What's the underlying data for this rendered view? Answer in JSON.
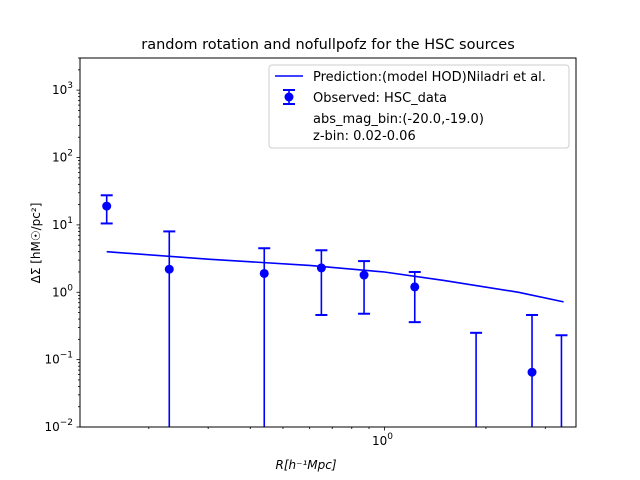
{
  "chart_data": {
    "type": "scatter",
    "title": "random rotation and nofullpofz for the HSC sources",
    "xlabel": "R[h⁻¹Mpc]",
    "ylabel": "ΔΣ [hM☉/pc²]",
    "xscale": "log",
    "yscale": "log",
    "xlim": [
      0.125,
      3.7
    ],
    "ylim": [
      0.01,
      3000
    ],
    "x_tick_labels": [
      {
        "value": 1.0,
        "label": "10⁰"
      }
    ],
    "y_tick_labels": [
      {
        "value": 0.01,
        "base": "10",
        "exp": "−2"
      },
      {
        "value": 0.1,
        "base": "10",
        "exp": "−1"
      },
      {
        "value": 1,
        "base": "10",
        "exp": "0"
      },
      {
        "value": 10,
        "base": "10",
        "exp": "1"
      },
      {
        "value": 100,
        "base": "10",
        "exp": "2"
      },
      {
        "value": 1000,
        "base": "10",
        "exp": "3"
      }
    ],
    "series": [
      {
        "name": "Prediction:(model HOD)Niladri et al.",
        "kind": "line",
        "color": "#0000ff",
        "x": [
          0.15,
          0.3,
          0.6,
          1.0,
          1.5,
          2.5,
          3.4
        ],
        "y": [
          4.0,
          3.1,
          2.5,
          2.0,
          1.5,
          1.0,
          0.72
        ]
      },
      {
        "name": "Observed: HSC_data",
        "kind": "errorbar",
        "color": "#0000ff",
        "x": [
          0.15,
          0.23,
          0.44,
          0.65,
          0.87,
          1.23,
          1.87,
          2.74,
          3.35
        ],
        "y": [
          19.0,
          2.2,
          1.9,
          2.3,
          1.8,
          1.2,
          null,
          0.065,
          null
        ],
        "yerr_low": [
          10.5,
          0.001,
          0.001,
          0.46,
          0.48,
          0.36,
          0.001,
          0.001,
          0.001
        ],
        "yerr_high": [
          27.5,
          8.0,
          4.5,
          4.2,
          2.9,
          2.0,
          0.25,
          0.46,
          0.23
        ]
      }
    ],
    "legend": {
      "placement": "top-right",
      "extra_lines": [
        "abs_mag_bin:(-20.0,-19.0)",
        "z-bin: 0.02-0.06"
      ]
    },
    "grid": false
  }
}
